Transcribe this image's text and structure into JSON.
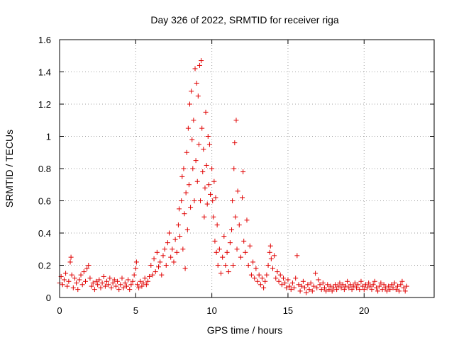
{
  "chart_data": {
    "type": "scatter",
    "title": "Day 326 of 2022, SRMTID for receiver riga",
    "xlabel": "GPS time / hours",
    "ylabel": "SRMTID / TECUs",
    "xlim": [
      0,
      24.6
    ],
    "ylim": [
      0,
      1.6
    ],
    "x_ticks": [
      0,
      5,
      10,
      15,
      20
    ],
    "x_tick_labels": [
      "0",
      "5",
      "10",
      "15",
      "20"
    ],
    "y_ticks": [
      0,
      0.2,
      0.4,
      0.6,
      0.8,
      1.0,
      1.2,
      1.4,
      1.6
    ],
    "y_tick_labels": [
      "0",
      "0.2",
      "0.4",
      "0.6",
      "0.8",
      "1",
      "1.2",
      "1.4",
      "1.6"
    ],
    "grid": true,
    "marker": "+",
    "marker_color": "#e00000",
    "series": [
      {
        "name": "SRMTID",
        "points": [
          [
            0.0,
            0.09
          ],
          [
            0.1,
            0.13
          ],
          [
            0.2,
            0.08
          ],
          [
            0.3,
            0.11
          ],
          [
            0.4,
            0.15
          ],
          [
            0.5,
            0.07
          ],
          [
            0.6,
            0.1
          ],
          [
            0.7,
            0.22
          ],
          [
            0.75,
            0.25
          ],
          [
            0.8,
            0.14
          ],
          [
            0.9,
            0.06
          ],
          [
            1.0,
            0.12
          ],
          [
            1.1,
            0.09
          ],
          [
            1.2,
            0.05
          ],
          [
            1.3,
            0.11
          ],
          [
            1.4,
            0.14
          ],
          [
            1.5,
            0.08
          ],
          [
            1.6,
            0.16
          ],
          [
            1.7,
            0.1
          ],
          [
            1.8,
            0.18
          ],
          [
            1.9,
            0.2
          ],
          [
            2.0,
            0.12
          ],
          [
            2.1,
            0.07
          ],
          [
            2.2,
            0.09
          ],
          [
            2.3,
            0.05
          ],
          [
            2.4,
            0.1
          ],
          [
            2.5,
            0.08
          ],
          [
            2.6,
            0.11
          ],
          [
            2.7,
            0.06
          ],
          [
            2.8,
            0.09
          ],
          [
            2.9,
            0.13
          ],
          [
            3.0,
            0.07
          ],
          [
            3.1,
            0.1
          ],
          [
            3.2,
            0.08
          ],
          [
            3.3,
            0.12
          ],
          [
            3.4,
            0.06
          ],
          [
            3.5,
            0.09
          ],
          [
            3.6,
            0.11
          ],
          [
            3.7,
            0.07
          ],
          [
            3.8,
            0.1
          ],
          [
            3.9,
            0.05
          ],
          [
            4.0,
            0.08
          ],
          [
            4.1,
            0.12
          ],
          [
            4.2,
            0.06
          ],
          [
            4.3,
            0.09
          ],
          [
            4.4,
            0.07
          ],
          [
            4.5,
            0.11
          ],
          [
            4.6,
            0.05
          ],
          [
            4.7,
            0.08
          ],
          [
            4.8,
            0.1
          ],
          [
            4.9,
            0.14
          ],
          [
            5.0,
            0.18
          ],
          [
            5.05,
            0.22
          ],
          [
            5.1,
            0.08
          ],
          [
            5.2,
            0.06
          ],
          [
            5.3,
            0.1
          ],
          [
            5.4,
            0.07
          ],
          [
            5.5,
            0.09
          ],
          [
            5.6,
            0.12
          ],
          [
            5.7,
            0.08
          ],
          [
            5.8,
            0.1
          ],
          [
            5.9,
            0.13
          ],
          [
            6.0,
            0.2
          ],
          [
            6.1,
            0.14
          ],
          [
            6.2,
            0.24
          ],
          [
            6.3,
            0.16
          ],
          [
            6.4,
            0.28
          ],
          [
            6.5,
            0.19
          ],
          [
            6.6,
            0.22
          ],
          [
            6.7,
            0.14
          ],
          [
            6.8,
            0.26
          ],
          [
            6.9,
            0.3
          ],
          [
            7.0,
            0.2
          ],
          [
            7.1,
            0.34
          ],
          [
            7.2,
            0.4
          ],
          [
            7.3,
            0.25
          ],
          [
            7.4,
            0.3
          ],
          [
            7.5,
            0.22
          ],
          [
            7.6,
            0.36
          ],
          [
            7.7,
            0.28
          ],
          [
            7.8,
            0.45
          ],
          [
            7.85,
            0.55
          ],
          [
            7.9,
            0.38
          ],
          [
            8.0,
            0.6
          ],
          [
            8.05,
            0.75
          ],
          [
            8.1,
            0.3
          ],
          [
            8.15,
            0.8
          ],
          [
            8.2,
            0.52
          ],
          [
            8.25,
            0.18
          ],
          [
            8.3,
            0.65
          ],
          [
            8.35,
            0.9
          ],
          [
            8.4,
            0.42
          ],
          [
            8.45,
            1.05
          ],
          [
            8.5,
            0.7
          ],
          [
            8.55,
            1.2
          ],
          [
            8.6,
            0.56
          ],
          [
            8.65,
            1.28
          ],
          [
            8.7,
            0.98
          ],
          [
            8.75,
            0.8
          ],
          [
            8.8,
            1.1
          ],
          [
            8.85,
            0.6
          ],
          [
            8.9,
            1.42
          ],
          [
            8.95,
            0.85
          ],
          [
            9.0,
            1.33
          ],
          [
            9.05,
            0.72
          ],
          [
            9.1,
            1.25
          ],
          [
            9.15,
            0.95
          ],
          [
            9.2,
            1.44
          ],
          [
            9.25,
            0.6
          ],
          [
            9.3,
            1.47
          ],
          [
            9.35,
            1.05
          ],
          [
            9.4,
            0.78
          ],
          [
            9.45,
            0.92
          ],
          [
            9.5,
            0.5
          ],
          [
            9.55,
            0.68
          ],
          [
            9.6,
            1.15
          ],
          [
            9.65,
            0.82
          ],
          [
            9.7,
            0.58
          ],
          [
            9.75,
            1.0
          ],
          [
            9.8,
            0.7
          ],
          [
            9.85,
            0.95
          ],
          [
            9.9,
            0.64
          ],
          [
            10.0,
            0.8
          ],
          [
            10.05,
            0.6
          ],
          [
            10.1,
            0.5
          ],
          [
            10.15,
            0.72
          ],
          [
            10.2,
            0.35
          ],
          [
            10.25,
            0.62
          ],
          [
            10.3,
            0.28
          ],
          [
            10.35,
            0.45
          ],
          [
            10.4,
            0.2
          ],
          [
            10.5,
            0.3
          ],
          [
            10.6,
            0.15
          ],
          [
            10.7,
            0.25
          ],
          [
            10.8,
            0.38
          ],
          [
            10.9,
            0.2
          ],
          [
            11.0,
            0.28
          ],
          [
            11.1,
            0.16
          ],
          [
            11.2,
            0.34
          ],
          [
            11.3,
            0.42
          ],
          [
            11.35,
            0.6
          ],
          [
            11.4,
            0.2
          ],
          [
            11.45,
            0.8
          ],
          [
            11.5,
            0.96
          ],
          [
            11.55,
            0.5
          ],
          [
            11.6,
            1.1
          ],
          [
            11.65,
            0.3
          ],
          [
            11.7,
            0.66
          ],
          [
            11.8,
            0.45
          ],
          [
            11.9,
            0.25
          ],
          [
            12.0,
            0.62
          ],
          [
            12.05,
            0.78
          ],
          [
            12.1,
            0.35
          ],
          [
            12.2,
            0.28
          ],
          [
            12.3,
            0.48
          ],
          [
            12.4,
            0.2
          ],
          [
            12.5,
            0.32
          ],
          [
            12.6,
            0.14
          ],
          [
            12.7,
            0.22
          ],
          [
            12.8,
            0.12
          ],
          [
            12.9,
            0.18
          ],
          [
            13.0,
            0.1
          ],
          [
            13.1,
            0.14
          ],
          [
            13.2,
            0.08
          ],
          [
            13.3,
            0.12
          ],
          [
            13.4,
            0.06
          ],
          [
            13.5,
            0.1
          ],
          [
            13.6,
            0.14
          ],
          [
            13.7,
            0.2
          ],
          [
            13.8,
            0.28
          ],
          [
            13.85,
            0.32
          ],
          [
            13.9,
            0.24
          ],
          [
            14.0,
            0.18
          ],
          [
            14.1,
            0.26
          ],
          [
            14.2,
            0.12
          ],
          [
            14.3,
            0.16
          ],
          [
            14.4,
            0.1
          ],
          [
            14.5,
            0.14
          ],
          [
            14.6,
            0.08
          ],
          [
            14.7,
            0.12
          ],
          [
            14.8,
            0.09
          ],
          [
            14.9,
            0.06
          ],
          [
            15.0,
            0.11
          ],
          [
            15.1,
            0.07
          ],
          [
            15.2,
            0.05
          ],
          [
            15.3,
            0.09
          ],
          [
            15.4,
            0.06
          ],
          [
            15.5,
            0.12
          ],
          [
            15.6,
            0.26
          ],
          [
            15.7,
            0.08
          ],
          [
            15.8,
            0.04
          ],
          [
            15.9,
            0.07
          ],
          [
            16.0,
            0.1
          ],
          [
            16.1,
            0.06
          ],
          [
            16.2,
            0.03
          ],
          [
            16.3,
            0.08
          ],
          [
            16.4,
            0.05
          ],
          [
            16.5,
            0.09
          ],
          [
            16.6,
            0.04
          ],
          [
            16.7,
            0.07
          ],
          [
            16.8,
            0.15
          ],
          [
            16.9,
            0.06
          ],
          [
            17.0,
            0.11
          ],
          [
            17.1,
            0.08
          ],
          [
            17.2,
            0.05
          ],
          [
            17.3,
            0.09
          ],
          [
            17.4,
            0.06
          ],
          [
            17.5,
            0.04
          ],
          [
            17.6,
            0.08
          ],
          [
            17.7,
            0.05
          ],
          [
            17.8,
            0.07
          ],
          [
            17.9,
            0.04
          ],
          [
            18.0,
            0.06
          ],
          [
            18.1,
            0.08
          ],
          [
            18.2,
            0.05
          ],
          [
            18.3,
            0.07
          ],
          [
            18.4,
            0.09
          ],
          [
            18.5,
            0.06
          ],
          [
            18.6,
            0.08
          ],
          [
            18.7,
            0.05
          ],
          [
            18.8,
            0.07
          ],
          [
            18.9,
            0.1
          ],
          [
            19.0,
            0.06
          ],
          [
            19.1,
            0.08
          ],
          [
            19.2,
            0.05
          ],
          [
            19.3,
            0.07
          ],
          [
            19.4,
            0.09
          ],
          [
            19.5,
            0.06
          ],
          [
            19.6,
            0.08
          ],
          [
            19.7,
            0.05
          ],
          [
            19.8,
            0.1
          ],
          [
            19.9,
            0.07
          ],
          [
            20.0,
            0.05
          ],
          [
            20.1,
            0.08
          ],
          [
            20.2,
            0.06
          ],
          [
            20.3,
            0.09
          ],
          [
            20.4,
            0.07
          ],
          [
            20.5,
            0.05
          ],
          [
            20.6,
            0.08
          ],
          [
            20.7,
            0.1
          ],
          [
            20.8,
            0.06
          ],
          [
            20.9,
            0.04
          ],
          [
            21.0,
            0.07
          ],
          [
            21.1,
            0.09
          ],
          [
            21.2,
            0.05
          ],
          [
            21.3,
            0.08
          ],
          [
            21.4,
            0.06
          ],
          [
            21.5,
            0.04
          ],
          [
            21.6,
            0.07
          ],
          [
            21.7,
            0.05
          ],
          [
            21.8,
            0.08
          ],
          [
            21.9,
            0.06
          ],
          [
            22.0,
            0.09
          ],
          [
            22.1,
            0.05
          ],
          [
            22.2,
            0.07
          ],
          [
            22.3,
            0.04
          ],
          [
            22.4,
            0.08
          ],
          [
            22.5,
            0.1
          ],
          [
            22.6,
            0.06
          ],
          [
            22.7,
            0.04
          ],
          [
            22.8,
            0.07
          ]
        ]
      }
    ]
  }
}
